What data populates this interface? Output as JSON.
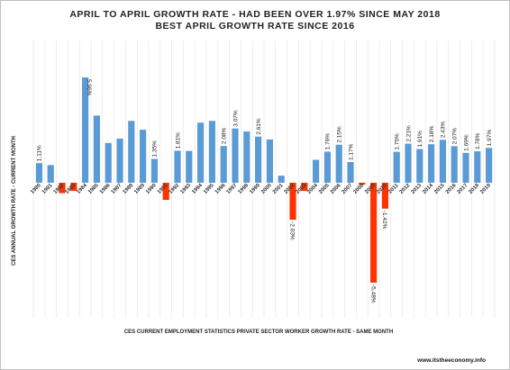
{
  "chart_data": {
    "type": "bar",
    "title": "APRIL TO APRIL GROWTH RATE - HAD BEEN OVER 1.97% SINCE MAY 2018",
    "subtitle": "BEST APRIL GROWTH RATE SINCE 2016",
    "xlabel": "CES CURRENT EMPLOYMENT STATISTICS PRIVATE SECTOR WORKER GROWTH RATE - SAME MONTH",
    "ylabel": "CES ANNUAL GROWTH RATE - CURRENT MONTH",
    "source": "www.itstheeconomy.info",
    "ylim": [
      -6.2,
      6.4
    ],
    "grid": "vertical",
    "positive_color": "#5b9bd5",
    "negative_color": "#ff3300",
    "categories": [
      "1980",
      "1981",
      "1982",
      "1983",
      "1984",
      "1985",
      "1986",
      "1987",
      "1988",
      "1989",
      "1990",
      "1991",
      "1992",
      "1993",
      "1994",
      "1995",
      "1996",
      "1997",
      "1998",
      "1999",
      "2000",
      "2001",
      "2002",
      "2003",
      "2004",
      "2005",
      "2006",
      "2007",
      "2008",
      "2009",
      "2010",
      "2011",
      "2012",
      "2013",
      "2014",
      "2015",
      "2016",
      "2017",
      "2018",
      "2019"
    ],
    "tick_labels": [
      "1980",
      "1981",
      "1982",
      "1983",
      "1984",
      "1985",
      "1986",
      "1987",
      "1988",
      "1989",
      "1990",
      "1991",
      "1992",
      "1993",
      "1994",
      "1995",
      "1996",
      "1997",
      "1998",
      "1999",
      "2000",
      "2001",
      "2002",
      "2003",
      "2004",
      "2005",
      "2006",
      "2007",
      "2008",
      "2009",
      "2010",
      "2011",
      "2012",
      "2013",
      "2014",
      "2015",
      "2016",
      "2017",
      "2018",
      "2019"
    ],
    "values": [
      1.11,
      1.0,
      -0.57,
      -0.45,
      5.96,
      3.8,
      2.25,
      2.5,
      3.5,
      3.0,
      1.35,
      -0.94,
      1.81,
      1.8,
      3.4,
      3.5,
      2.08,
      3.07,
      2.9,
      2.61,
      2.45,
      0.4,
      -2.03,
      -0.45,
      1.3,
      1.76,
      2.15,
      1.17,
      -0.1,
      -5.48,
      -1.42,
      1.75,
      2.21,
      1.91,
      2.18,
      2.43,
      2.07,
      1.69,
      1.78,
      1.97
    ],
    "data_labels": [
      "1.11%",
      "",
      "",
      "",
      "5.96%",
      "",
      "",
      "",
      "",
      "",
      "1.35%",
      "",
      "1.81%",
      "",
      "",
      "",
      "2.08%",
      "3.07%",
      "",
      "2.61%",
      "",
      "",
      "-2.03%",
      "",
      "",
      "1.76%",
      "2.15%",
      "1.17%",
      "",
      "-5.48%",
      "-1.42%",
      "1.75%",
      "2.21%",
      "1.91%",
      "2.18%",
      "2.43%",
      "2.07%",
      "1.69%",
      "1.78%",
      "1.97%"
    ]
  }
}
